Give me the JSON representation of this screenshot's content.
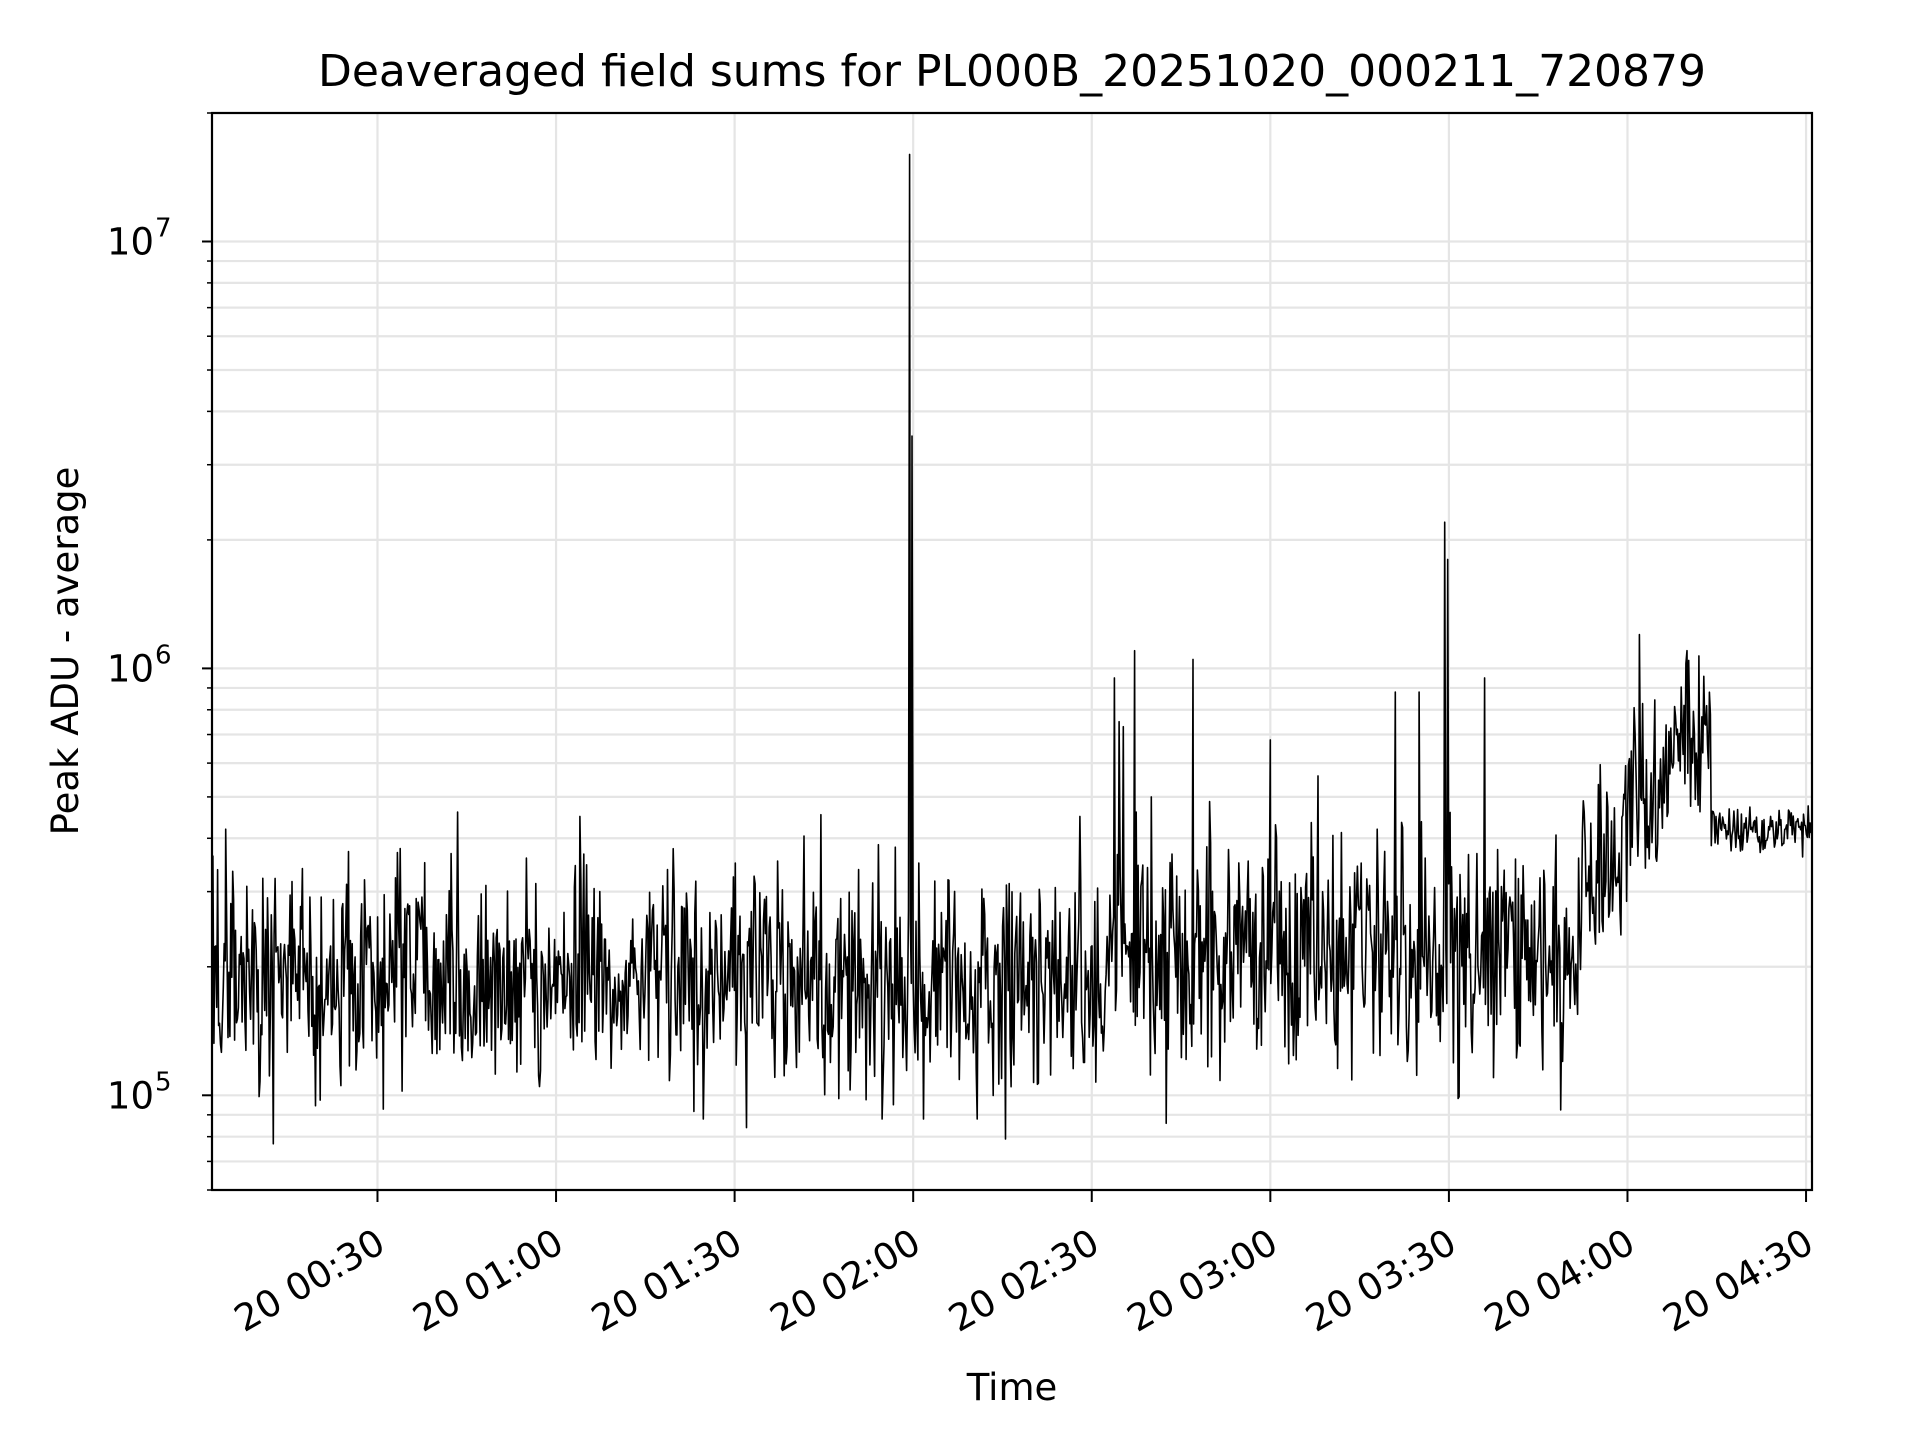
{
  "chart_data": {
    "type": "line",
    "title": "Deaveraged field sums for PL000B_20251020_000211_720879",
    "xlabel": "Time",
    "ylabel": "Peak ADU - average",
    "yscale": "log",
    "ylim": [
      60000,
      20000000
    ],
    "xlim_minutes": [
      2.2,
      271
    ],
    "grid": true,
    "x_ticks": [
      {
        "minutes": 30,
        "label": "20 00:30"
      },
      {
        "minutes": 60,
        "label": "20 01:00"
      },
      {
        "minutes": 90,
        "label": "20 01:30"
      },
      {
        "minutes": 120,
        "label": "20 02:00"
      },
      {
        "minutes": 150,
        "label": "20 02:30"
      },
      {
        "minutes": 180,
        "label": "20 03:00"
      },
      {
        "minutes": 210,
        "label": "20 03:30"
      },
      {
        "minutes": 240,
        "label": "20 04:00"
      },
      {
        "minutes": 270,
        "label": "20 04:30"
      }
    ],
    "y_ticks": [
      {
        "value": 100000,
        "base": "10",
        "exp": "5"
      },
      {
        "value": 1000000,
        "base": "10",
        "exp": "6"
      },
      {
        "value": 10000000,
        "base": "10",
        "exp": "7"
      }
    ],
    "series": [
      {
        "name": "Peak ADU - average",
        "color": "#000000",
        "time_unit": "minutes after 20 00:00",
        "segments": [
          {
            "t0": 2.2,
            "t1": 80,
            "level": 190000,
            "noise": 0.55
          },
          {
            "t0": 80,
            "t1": 155,
            "level": 185000,
            "noise": 0.6
          },
          {
            "t0": 155,
            "t1": 196,
            "level": 210000,
            "noise": 0.65
          },
          {
            "t0": 196,
            "t1": 232,
            "level": 220000,
            "noise": 0.65
          },
          {
            "t0": 232,
            "t1": 239,
            "level": 330000,
            "noise": 0.55
          },
          {
            "t0": 239,
            "t1": 246,
            "level": 480000,
            "noise": 0.5
          },
          {
            "t0": 246,
            "t1": 254,
            "level": 700000,
            "noise": 0.35
          },
          {
            "t0": 254,
            "t1": 271,
            "level": 420000,
            "noise": 0.12
          }
        ],
        "spikes": [
          {
            "t": 4.5,
            "value": 420000
          },
          {
            "t": 12.5,
            "value": 77000
          },
          {
            "t": 64.0,
            "value": 450000
          },
          {
            "t": 92.0,
            "value": 84000
          },
          {
            "t": 119.4,
            "value": 16000000
          },
          {
            "t": 119.8,
            "value": 3500000
          },
          {
            "t": 135.5,
            "value": 79000
          },
          {
            "t": 148.0,
            "value": 450000
          },
          {
            "t": 153.8,
            "value": 950000
          },
          {
            "t": 154.6,
            "value": 750000
          },
          {
            "t": 155.3,
            "value": 730000
          },
          {
            "t": 157.2,
            "value": 1100000
          },
          {
            "t": 160.0,
            "value": 500000
          },
          {
            "t": 162.5,
            "value": 86000
          },
          {
            "t": 167.0,
            "value": 1050000
          },
          {
            "t": 180.0,
            "value": 680000
          },
          {
            "t": 188.0,
            "value": 560000
          },
          {
            "t": 201.0,
            "value": 880000
          },
          {
            "t": 205.0,
            "value": 880000
          },
          {
            "t": 209.3,
            "value": 2200000
          },
          {
            "t": 209.8,
            "value": 1800000
          },
          {
            "t": 210.2,
            "value": 460000
          },
          {
            "t": 216.0,
            "value": 950000
          },
          {
            "t": 217.5,
            "value": 110000
          },
          {
            "t": 242.0,
            "value": 1200000
          },
          {
            "t": 250.0,
            "value": 1100000
          },
          {
            "t": 252.0,
            "value": 1070000
          }
        ]
      }
    ]
  }
}
